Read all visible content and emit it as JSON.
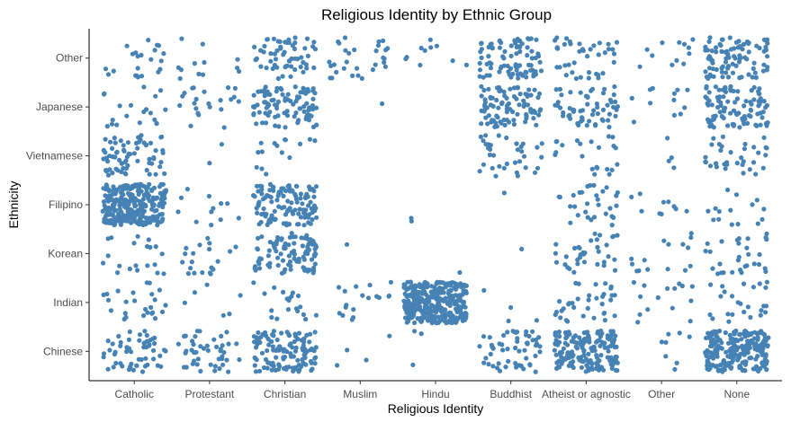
{
  "chart_data": {
    "type": "scatter",
    "title": "Religious Identity by Ethnic Group",
    "xlabel": "Religious Identity",
    "ylabel": "Ethnicity",
    "categories_x": [
      "Catholic",
      "Protestant",
      "Christian",
      "Muslim",
      "Hindu",
      "Buddhist",
      "Atheist or agnostic",
      "Other",
      "None"
    ],
    "categories_y": [
      "Chinese",
      "Indian",
      "Korean",
      "Filipino",
      "Vietnamese",
      "Japanese",
      "Other"
    ],
    "point_color": "#4682b4",
    "grid": false,
    "jitter": true,
    "approx_counts": {
      "Chinese": [
        55,
        45,
        120,
        4,
        3,
        55,
        170,
        8,
        230
      ],
      "Indian": [
        25,
        6,
        20,
        18,
        330,
        4,
        35,
        15,
        25
      ],
      "Korean": [
        20,
        20,
        95,
        1,
        1,
        1,
        35,
        15,
        30
      ],
      "Filipino": [
        260,
        12,
        120,
        0,
        2,
        1,
        30,
        10,
        15
      ],
      "Vietnamese": [
        70,
        2,
        15,
        0,
        0,
        35,
        22,
        4,
        35
      ],
      "Japanese": [
        20,
        22,
        95,
        1,
        0,
        90,
        60,
        12,
        100
      ],
      "Other": [
        22,
        12,
        60,
        30,
        10,
        85,
        40,
        12,
        90
      ]
    }
  }
}
